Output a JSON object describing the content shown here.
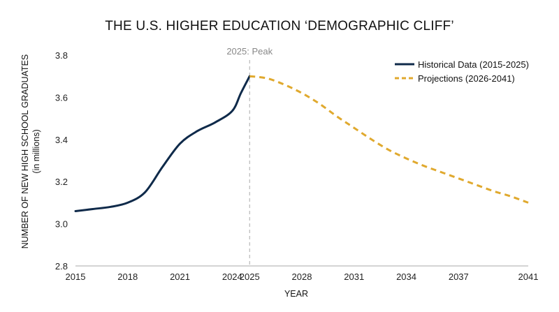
{
  "chart_data": {
    "type": "line",
    "title": "THE U.S. HIGHER EDUCATION ‘DEMOGRAPHIC CLIFF’",
    "xlabel": "YEAR",
    "ylabel": "NUMBER OF NEW HIGH SCHOOL GRADUATES",
    "ylabel_sub": "(in millions)",
    "xlim": [
      2015,
      2041
    ],
    "ylim": [
      2.8,
      3.8
    ],
    "xticks": [
      "2015",
      "2018",
      "2021",
      "2024",
      "2025",
      "2028",
      "2031",
      "2034",
      "2037",
      "2041"
    ],
    "xtick_values": [
      2015,
      2018,
      2021,
      2024,
      2025,
      2028,
      2031,
      2034,
      2037,
      2041
    ],
    "yticks": [
      "2.8",
      "3.0",
      "3.2",
      "3.4",
      "3.6",
      "3.8"
    ],
    "ytick_values": [
      2.8,
      3.0,
      3.2,
      3.4,
      3.6,
      3.8
    ],
    "grid": false,
    "legend_position": "top-right",
    "annotation": {
      "text": "2025: Peak",
      "x": 2025
    },
    "series": [
      {
        "name": "Historical Data (2015-2025)",
        "style": "solid",
        "color": "#0f2a4a",
        "x": [
          2015,
          2016,
          2017,
          2018,
          2019,
          2020,
          2021,
          2022,
          2023,
          2024,
          2024.5,
          2025
        ],
        "y": [
          3.06,
          3.07,
          3.08,
          3.1,
          3.15,
          3.27,
          3.38,
          3.44,
          3.48,
          3.535,
          3.62,
          3.7
        ]
      },
      {
        "name": "Projections (2026-2041)",
        "style": "dashed",
        "color": "#e0a92e",
        "x": [
          2025,
          2026,
          2027,
          2028,
          2029,
          2030,
          2031,
          2032,
          2033,
          2034,
          2035,
          2036,
          2037,
          2038,
          2039,
          2040,
          2041
        ],
        "y": [
          3.7,
          3.69,
          3.66,
          3.62,
          3.57,
          3.51,
          3.455,
          3.4,
          3.35,
          3.31,
          3.275,
          3.245,
          3.215,
          3.185,
          3.155,
          3.13,
          3.1
        ]
      }
    ]
  }
}
